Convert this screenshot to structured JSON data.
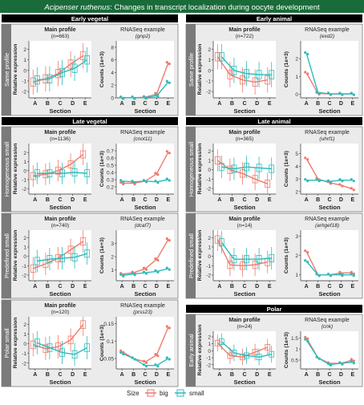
{
  "header": {
    "title_italic": "Acipenser ruthenus",
    "title_rest": ": Changes in transcript localization during oocyte development"
  },
  "column_headers": {
    "vegetal_early": "Early vegetal",
    "vegetal_late": "Late vegetal",
    "animal_early": "Early animal",
    "animal_late": "Late animal",
    "polar": "Polar"
  },
  "panel_titles": {
    "main": "Main profile",
    "rnaseq": "RNASeq example"
  },
  "axis_labels": {
    "xlabel": "Section",
    "ylabel_main": "Relative expression",
    "ylabel_rnaseq": "Counts (1e+3)"
  },
  "legend": {
    "title": "Size",
    "big": "big",
    "small": "small"
  },
  "colors": {
    "big": "#f07a6b",
    "small": "#2bbcbc",
    "header_bg": "#1a6b3a",
    "section_bg": "#000000",
    "side_bg": "#7a7a7a"
  },
  "sections": [
    "A",
    "B",
    "C",
    "D",
    "E"
  ],
  "chart_data": [
    {
      "id": "ev-same",
      "row_label": "Same profile",
      "count": "(n=663)",
      "gene": "(gnp2)",
      "type": "line",
      "main": {
        "ylim": [
          -2.6,
          2.8
        ],
        "yticks": [
          -2,
          -1,
          0,
          1,
          2
        ],
        "big": [
          -1.1,
          -0.8,
          -0.3,
          0.6,
          1.4
        ],
        "small": [
          -0.9,
          -0.8,
          -0.2,
          0.2,
          1.0
        ]
      },
      "rnaseq": {
        "ylim": [
          0,
          9
        ],
        "yticks": [
          0,
          2,
          4,
          6,
          8
        ],
        "big": [
          0.02,
          0.03,
          0.1,
          0.6,
          5.5
        ],
        "small": [
          0.02,
          0.03,
          0.05,
          0.3,
          2.5
        ]
      }
    },
    {
      "id": "lv-homog",
      "row_label": "Homogeneous small",
      "count": "(n=1136)",
      "gene": "(cnot11)",
      "type": "line",
      "main": {
        "ylim": [
          -2.6,
          3.0
        ],
        "yticks": [
          -2,
          -1,
          0,
          1,
          2
        ],
        "big": [
          -0.6,
          -0.4,
          0.0,
          0.7,
          1.8
        ],
        "small": [
          -0.3,
          -0.3,
          -0.3,
          -0.2,
          -0.3
        ]
      },
      "rnaseq": {
        "ylim": [
          0.1,
          0.8
        ],
        "yticks": [
          0.2,
          0.3,
          0.4,
          0.5,
          0.6,
          0.7
        ],
        "big": [
          0.25,
          0.25,
          0.28,
          0.38,
          0.68
        ],
        "small": [
          0.28,
          0.27,
          0.28,
          0.27,
          0.3
        ]
      }
    },
    {
      "id": "lv-predef",
      "row_label": "Predefined small",
      "count": "(n=740)",
      "gene": "(dcaf7)",
      "type": "line",
      "main": {
        "ylim": [
          -2.6,
          2.8
        ],
        "yticks": [
          -2,
          -1,
          0,
          1,
          2
        ],
        "big": [
          -1.3,
          -0.8,
          -0.2,
          0.7,
          1.6
        ],
        "small": [
          -0.5,
          -0.3,
          -0.2,
          -0.1,
          0.3
        ]
      },
      "rnaseq": {
        "ylim": [
          0.2,
          4.0
        ],
        "yticks": [
          1,
          2,
          3
        ],
        "big": [
          0.7,
          0.8,
          1.1,
          1.8,
          3.3
        ],
        "small": [
          0.6,
          0.7,
          0.8,
          0.9,
          1.1
        ]
      }
    },
    {
      "id": "lv-polar",
      "row_label": "Polar small",
      "count": "(n=120)",
      "gene": "(prss23)",
      "type": "line",
      "main": {
        "ylim": [
          -2.6,
          2.8
        ],
        "yticks": [
          -2,
          -1,
          0,
          1,
          2
        ],
        "big": [
          -0.1,
          -0.5,
          -0.3,
          0.4,
          2.0
        ],
        "small": [
          0.1,
          -0.4,
          -0.9,
          -1.1,
          -0.4
        ]
      },
      "rnaseq": {
        "ylim": [
          0.02,
          0.17
        ],
        "yticks": [
          0.05,
          0.1,
          0.15
        ],
        "big": [
          0.07,
          0.05,
          0.04,
          0.06,
          0.14
        ],
        "small": [
          0.065,
          0.05,
          0.03,
          0.03,
          0.05
        ]
      }
    },
    {
      "id": "ea-same",
      "row_label": "Same profile",
      "count": "(n=722)",
      "gene": "(exd2)",
      "type": "line",
      "main": {
        "ylim": [
          -2.6,
          2.8
        ],
        "yticks": [
          -2,
          -1,
          0,
          1,
          2
        ],
        "big": [
          1.3,
          -0.4,
          -0.9,
          -1.1,
          -0.9
        ],
        "small": [
          1.3,
          0.0,
          -0.3,
          -0.4,
          -0.4
        ]
      },
      "rnaseq": {
        "ylim": [
          -0.2,
          3.0
        ],
        "yticks": [
          0,
          1,
          2
        ],
        "big": [
          1.2,
          0.05,
          0.02,
          0.02,
          0.02
        ],
        "small": [
          2.3,
          0.1,
          0.03,
          0.02,
          0.02
        ]
      }
    },
    {
      "id": "la-homog",
      "row_label": "Homogeneous small",
      "count": "(n=365)",
      "gene": "(uhrf1)",
      "type": "line",
      "main": {
        "ylim": [
          -2.6,
          2.8
        ],
        "yticks": [
          -2,
          -1,
          0,
          1,
          2
        ],
        "big": [
          1.0,
          0.0,
          -0.4,
          -1.0,
          -1.5
        ],
        "small": [
          0.3,
          0.1,
          0.3,
          0.2,
          0.1
        ]
      },
      "rnaseq": {
        "ylim": [
          1.8,
          5.8
        ],
        "yticks": [
          2,
          3,
          4,
          5
        ],
        "big": [
          4.6,
          3.0,
          2.7,
          2.5,
          2.2
        ],
        "small": [
          2.9,
          2.9,
          2.8,
          2.9,
          2.9
        ]
      }
    },
    {
      "id": "la-predef",
      "row_label": "Predefined small",
      "count": "(n=14)",
      "gene": "(arhgef18)",
      "type": "line",
      "main": {
        "ylim": [
          -2.6,
          2.8
        ],
        "yticks": [
          -2,
          -1,
          0,
          1,
          2
        ],
        "big": [
          1.8,
          -0.9,
          -1.0,
          -0.9,
          -0.6
        ],
        "small": [
          1.5,
          -0.3,
          -0.3,
          -0.3,
          -0.2
        ]
      },
      "rnaseq": {
        "ylim": [
          0.7,
          3.3
        ],
        "yticks": [
          1,
          2,
          3
        ],
        "big": [
          2.2,
          1.0,
          1.0,
          1.1,
          1.1
        ],
        "small": [
          1.7,
          1.0,
          1.0,
          1.0,
          1.0
        ]
      }
    },
    {
      "id": "polar-ea",
      "row_label": "Early animal",
      "count": "(n=24)",
      "gene": "(cnk)",
      "type": "line",
      "main": {
        "ylim": [
          -2.6,
          2.8
        ],
        "yticks": [
          -2,
          -1,
          0,
          1,
          2
        ],
        "big": [
          1.1,
          -0.7,
          -0.9,
          -0.2,
          0.5
        ],
        "small": [
          1.3,
          -0.3,
          -0.7,
          -0.9,
          -0.5
        ]
      },
      "rnaseq": {
        "ylim": [
          0.1,
          1.8
        ],
        "yticks": [
          0.5,
          1.0,
          1.5
        ],
        "big": [
          1.5,
          0.6,
          0.35,
          0.35,
          0.5
        ],
        "small": [
          1.4,
          0.6,
          0.3,
          0.35,
          0.4
        ]
      }
    }
  ]
}
